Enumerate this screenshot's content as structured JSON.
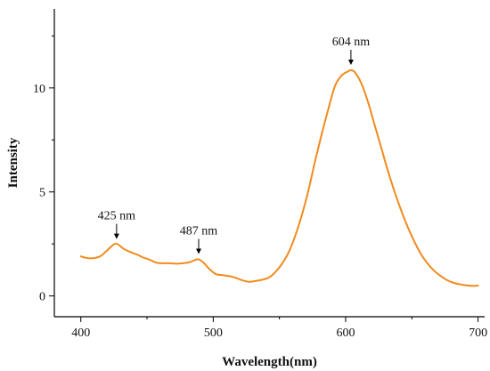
{
  "chart_data": {
    "type": "line",
    "xlabel": "Wavelength(nm)",
    "ylabel": "Intensity",
    "xlim": [
      380,
      705
    ],
    "ylim": [
      -1.0,
      13.8
    ],
    "xticks": [
      400,
      500,
      600,
      700
    ],
    "yticks": [
      0,
      5,
      10
    ],
    "grid": false,
    "series": [
      {
        "color": "#f28a1e",
        "x": [
          400,
          405,
          410,
          415,
          420,
          425,
          428,
          432,
          437,
          442,
          447,
          452,
          457,
          462,
          467,
          472,
          477,
          482,
          486,
          489,
          493,
          497,
          502,
          507,
          512,
          517,
          522,
          527,
          532,
          537,
          542,
          547,
          552,
          557,
          562,
          567,
          572,
          577,
          582,
          587,
          592,
          597,
          602,
          604,
          607,
          612,
          617,
          622,
          627,
          632,
          637,
          642,
          647,
          652,
          657,
          662,
          667,
          672,
          677,
          682,
          687,
          692,
          697,
          700
        ],
        "y": [
          1.9,
          1.82,
          1.82,
          1.92,
          2.2,
          2.48,
          2.48,
          2.28,
          2.12,
          2.0,
          1.85,
          1.74,
          1.6,
          1.57,
          1.57,
          1.55,
          1.57,
          1.62,
          1.72,
          1.76,
          1.58,
          1.3,
          1.05,
          1.0,
          0.95,
          0.87,
          0.75,
          0.68,
          0.72,
          0.78,
          0.88,
          1.15,
          1.55,
          2.1,
          2.9,
          3.9,
          5.1,
          6.5,
          7.8,
          9.0,
          10.1,
          10.6,
          10.8,
          10.85,
          10.75,
          10.2,
          9.3,
          8.2,
          7.1,
          6.0,
          5.0,
          4.1,
          3.3,
          2.6,
          2.0,
          1.55,
          1.2,
          0.95,
          0.75,
          0.62,
          0.55,
          0.5,
          0.48,
          0.5
        ]
      }
    ],
    "annotations": [
      {
        "text": "425 nm",
        "x": 427,
        "y": 2.48
      },
      {
        "text": "487 nm",
        "x": 489,
        "y": 1.76
      },
      {
        "text": "604 nm",
        "x": 604,
        "y": 10.85
      }
    ]
  }
}
